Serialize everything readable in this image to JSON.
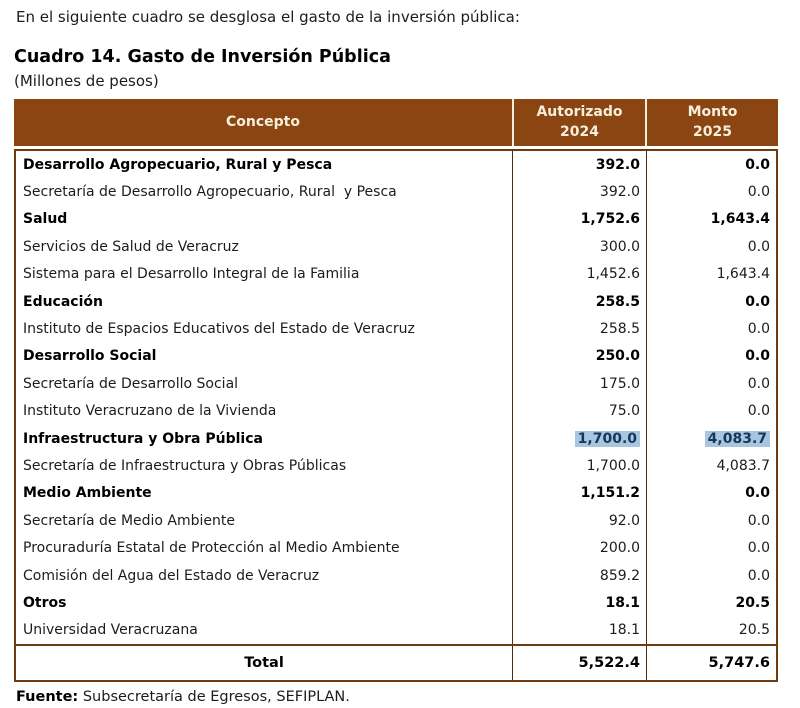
{
  "page": {
    "intro": "En el siguiente cuadro se desglosa el gasto de la inversión pública:",
    "title": "Cuadro 14. Gasto de Inversión Pública",
    "subtitle": "(Millones de pesos)",
    "source_label": "Fuente:",
    "source_text": " Subsecretaría de Egresos, SEFIPLAN."
  },
  "colors": {
    "header_bg": "#8B4513",
    "header_fg": "#F7EFDC",
    "border": "#6E3A10",
    "vline": "#52290C",
    "hl_bg": "#A9C6DF",
    "hl_fg": "#17365D"
  },
  "table": {
    "columns": [
      {
        "label": "Concepto"
      },
      {
        "line1": "Autorizado",
        "line2": "2024"
      },
      {
        "line1": "Monto",
        "line2": "2025"
      }
    ],
    "rows": [
      {
        "concepto": "Desarrollo Agropecuario, Rural y Pesca",
        "autorizado": "392.0",
        "monto": "0.0",
        "bold": true,
        "highlight": false
      },
      {
        "concepto": "Secretaría de Desarrollo Agropecuario, Rural  y Pesca",
        "autorizado": "392.0",
        "monto": "0.0",
        "bold": false,
        "highlight": false
      },
      {
        "concepto": "Salud",
        "autorizado": "1,752.6",
        "monto": "1,643.4",
        "bold": true,
        "highlight": false
      },
      {
        "concepto": "Servicios de Salud de Veracruz",
        "autorizado": "300.0",
        "monto": "0.0",
        "bold": false,
        "highlight": false
      },
      {
        "concepto": "Sistema para el Desarrollo Integral de la Familia",
        "autorizado": "1,452.6",
        "monto": "1,643.4",
        "bold": false,
        "highlight": false
      },
      {
        "concepto": "Educación",
        "autorizado": "258.5",
        "monto": "0.0",
        "bold": true,
        "highlight": false
      },
      {
        "concepto": "Instituto de Espacios Educativos del Estado de Veracruz",
        "autorizado": "258.5",
        "monto": "0.0",
        "bold": false,
        "highlight": false
      },
      {
        "concepto": "Desarrollo Social",
        "autorizado": "250.0",
        "monto": "0.0",
        "bold": true,
        "highlight": false
      },
      {
        "concepto": "Secretaría de Desarrollo Social",
        "autorizado": "175.0",
        "monto": "0.0",
        "bold": false,
        "highlight": false
      },
      {
        "concepto": "Instituto Veracruzano de la Vivienda",
        "autorizado": "75.0",
        "monto": "0.0",
        "bold": false,
        "highlight": false
      },
      {
        "concepto": "Infraestructura y Obra Pública",
        "autorizado": "1,700.0",
        "monto": "4,083.7",
        "bold": true,
        "highlight": true
      },
      {
        "concepto": "Secretaría de Infraestructura y Obras Públicas",
        "autorizado": "1,700.0",
        "monto": "4,083.7",
        "bold": false,
        "highlight": false
      },
      {
        "concepto": "Medio Ambiente",
        "autorizado": "1,151.2",
        "monto": "0.0",
        "bold": true,
        "highlight": false
      },
      {
        "concepto": "Secretaría de Medio Ambiente",
        "autorizado": "92.0",
        "monto": "0.0",
        "bold": false,
        "highlight": false
      },
      {
        "concepto": "Procuraduría Estatal de Protección al Medio Ambiente",
        "autorizado": "200.0",
        "monto": "0.0",
        "bold": false,
        "highlight": false
      },
      {
        "concepto": "Comisión del Agua del Estado de Veracruz",
        "autorizado": "859.2",
        "monto": "0.0",
        "bold": false,
        "highlight": false
      },
      {
        "concepto": "Otros",
        "autorizado": "18.1",
        "monto": "20.5",
        "bold": true,
        "highlight": false
      },
      {
        "concepto": "Universidad Veracruzana",
        "autorizado": "18.1",
        "monto": "20.5",
        "bold": false,
        "highlight": false
      }
    ],
    "total": {
      "label": "Total",
      "autorizado": "5,522.4",
      "monto": "5,747.6"
    }
  }
}
